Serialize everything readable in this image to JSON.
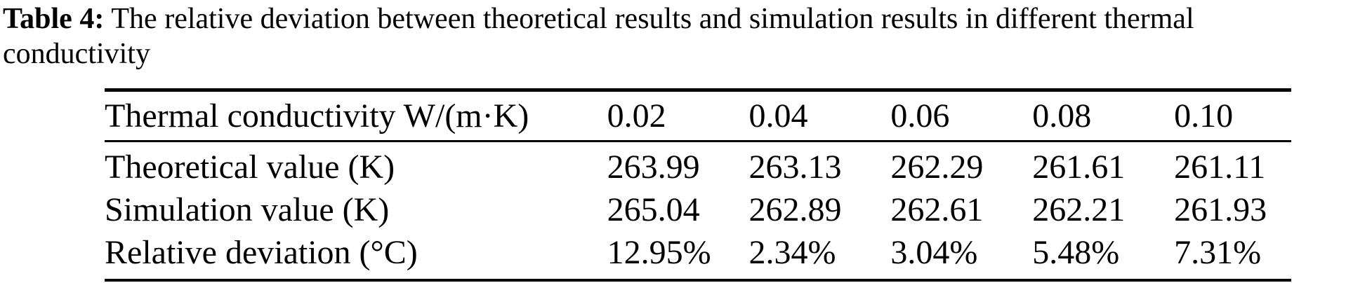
{
  "caption": {
    "label": "Table 4:",
    "line1_rest": "The relative deviation between theoretical results and simulation results in different thermal",
    "line2": "conductivity"
  },
  "table": {
    "header": {
      "label": "Thermal conductivity W/(m·K)",
      "columns": [
        "0.02",
        "0.04",
        "0.06",
        "0.08",
        "0.10"
      ]
    },
    "rows": [
      {
        "label": "Theoretical value (K)",
        "values": [
          "263.99",
          "263.13",
          "262.29",
          "261.61",
          "261.11"
        ]
      },
      {
        "label": "Simulation value (K)",
        "values": [
          "265.04",
          "262.89",
          "262.61",
          "262.21",
          "261.93"
        ]
      },
      {
        "label": "Relative deviation (°C)",
        "values": [
          "12.95%",
          "2.34%",
          "3.04%",
          "5.48%",
          "7.31%"
        ]
      }
    ]
  },
  "colors": {
    "text": "#000000",
    "background": "#ffffff",
    "rule": "#000000"
  }
}
